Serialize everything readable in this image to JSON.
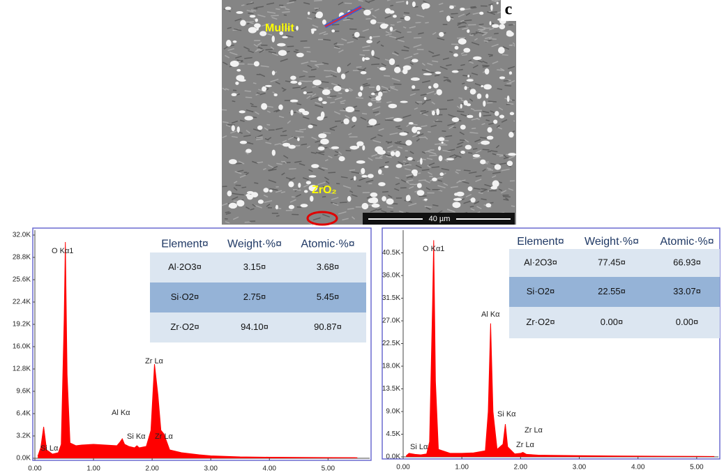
{
  "image": {
    "panel_label": "c",
    "labels": [
      "Mullit",
      "ZrO₂"
    ],
    "scale_bar": "40 µm"
  },
  "chart_data": [
    {
      "type": "area",
      "color": "#ff0000",
      "x": [
        0.05,
        0.1,
        0.15,
        0.2,
        0.3,
        0.4,
        0.45,
        0.5,
        0.52,
        0.55,
        0.6,
        0.7,
        0.8,
        1.0,
        1.2,
        1.4,
        1.45,
        1.49,
        1.53,
        1.6,
        1.7,
        1.74,
        1.78,
        1.9,
        1.98,
        2.04,
        2.1,
        2.15,
        2.2,
        2.3,
        2.5,
        2.8,
        3.0,
        3.5,
        4.0,
        4.5,
        5.0,
        5.5
      ],
      "values": [
        300,
        1500,
        4500,
        1200,
        600,
        800,
        2000,
        20000,
        31000,
        12000,
        2200,
        1800,
        1900,
        2000,
        1900,
        1800,
        2300,
        2800,
        2000,
        1700,
        1500,
        1800,
        1500,
        1700,
        4000,
        13500,
        9000,
        4000,
        3500,
        1200,
        800,
        500,
        350,
        200,
        150,
        120,
        100,
        80
      ],
      "xlim": [
        0,
        5.71
      ],
      "ylim": [
        0,
        32700
      ],
      "xticks": [
        {
          "value": 0,
          "label": "0.00"
        },
        {
          "value": 1,
          "label": "1.00"
        },
        {
          "value": 2,
          "label": "2.00"
        },
        {
          "value": 3,
          "label": "3.00"
        },
        {
          "value": 4,
          "label": "4.00"
        },
        {
          "value": 5,
          "label": "5.00"
        }
      ],
      "yticks": [
        {
          "value": 0,
          "label": "0.0K"
        },
        {
          "value": 3200,
          "label": "3.2K"
        },
        {
          "value": 6400,
          "label": "6.4K"
        },
        {
          "value": 9600,
          "label": "9.6K"
        },
        {
          "value": 12800,
          "label": "12.8K"
        },
        {
          "value": 16000,
          "label": "16.0K"
        },
        {
          "value": 19200,
          "label": "19.2K"
        },
        {
          "value": 22400,
          "label": "22.4K"
        },
        {
          "value": 25600,
          "label": "25.6K"
        },
        {
          "value": 28800,
          "label": "28.8K"
        },
        {
          "value": 32000,
          "label": "32.0K"
        }
      ],
      "peak_labels": [
        "O  Kα1",
        "Al Kα",
        "Si Kα",
        "Zr Lα",
        "Zr Lα",
        "Si Lα"
      ],
      "table": {
        "header": [
          "Element¤",
          "Weight·%¤",
          "Atomic·%¤"
        ],
        "rows": [
          [
            "Al·2O3¤",
            "3.15¤",
            "3.68¤"
          ],
          [
            "Si·O2¤",
            "2.75¤",
            "5.45¤"
          ],
          [
            "Zr·O2¤",
            "94.10¤",
            "90.87¤"
          ]
        ]
      }
    },
    {
      "type": "area",
      "color": "#ff0000",
      "x": [
        0.05,
        0.1,
        0.2,
        0.3,
        0.4,
        0.45,
        0.5,
        0.52,
        0.55,
        0.6,
        0.8,
        1.0,
        1.2,
        1.4,
        1.45,
        1.49,
        1.53,
        1.6,
        1.7,
        1.74,
        1.78,
        1.9,
        2.0,
        2.04,
        2.1,
        2.3,
        2.5,
        3.0,
        3.5,
        4.0,
        4.5,
        5.0,
        5.3
      ],
      "values": [
        200,
        700,
        500,
        400,
        600,
        3000,
        30000,
        43000,
        15000,
        1500,
        700,
        700,
        800,
        1200,
        9000,
        26500,
        9000,
        1500,
        2500,
        6500,
        2000,
        600,
        700,
        900,
        500,
        350,
        300,
        250,
        200,
        150,
        120,
        100,
        80
      ],
      "xlim": [
        0,
        5.37
      ],
      "ylim": [
        0,
        45000
      ],
      "xticks": [
        {
          "value": 0,
          "label": "0.00"
        },
        {
          "value": 1,
          "label": "1.00"
        },
        {
          "value": 2,
          "label": "2.00"
        },
        {
          "value": 3,
          "label": "3.00"
        },
        {
          "value": 4,
          "label": "4.00"
        },
        {
          "value": 5,
          "label": "5.00"
        }
      ],
      "yticks": [
        {
          "value": 0,
          "label": "0.0K"
        },
        {
          "value": 4500,
          "label": "4.5K"
        },
        {
          "value": 9000,
          "label": "9.0K"
        },
        {
          "value": 13500,
          "label": "13.5K"
        },
        {
          "value": 18000,
          "label": "18.0K"
        },
        {
          "value": 22500,
          "label": "22.5K"
        },
        {
          "value": 27000,
          "label": "27.0K"
        },
        {
          "value": 31500,
          "label": "31.5K"
        },
        {
          "value": 36000,
          "label": "36.0K"
        },
        {
          "value": 40500,
          "label": "40.5K"
        }
      ],
      "peak_labels": [
        "O  Kα1",
        "Al Kα",
        "Si Kα",
        "Zr Lα",
        "Zr Lα",
        "Si Lα"
      ],
      "table": {
        "header": [
          "Element¤",
          "Weight·%¤",
          "Atomic·%¤"
        ],
        "rows": [
          [
            "Al·2O3¤",
            "77.45¤",
            "66.93¤"
          ],
          [
            "Si·O2¤",
            "22.55¤",
            "33.07¤"
          ],
          [
            "Zr·O2¤",
            "0.00¤",
            "0.00¤"
          ]
        ]
      }
    }
  ]
}
